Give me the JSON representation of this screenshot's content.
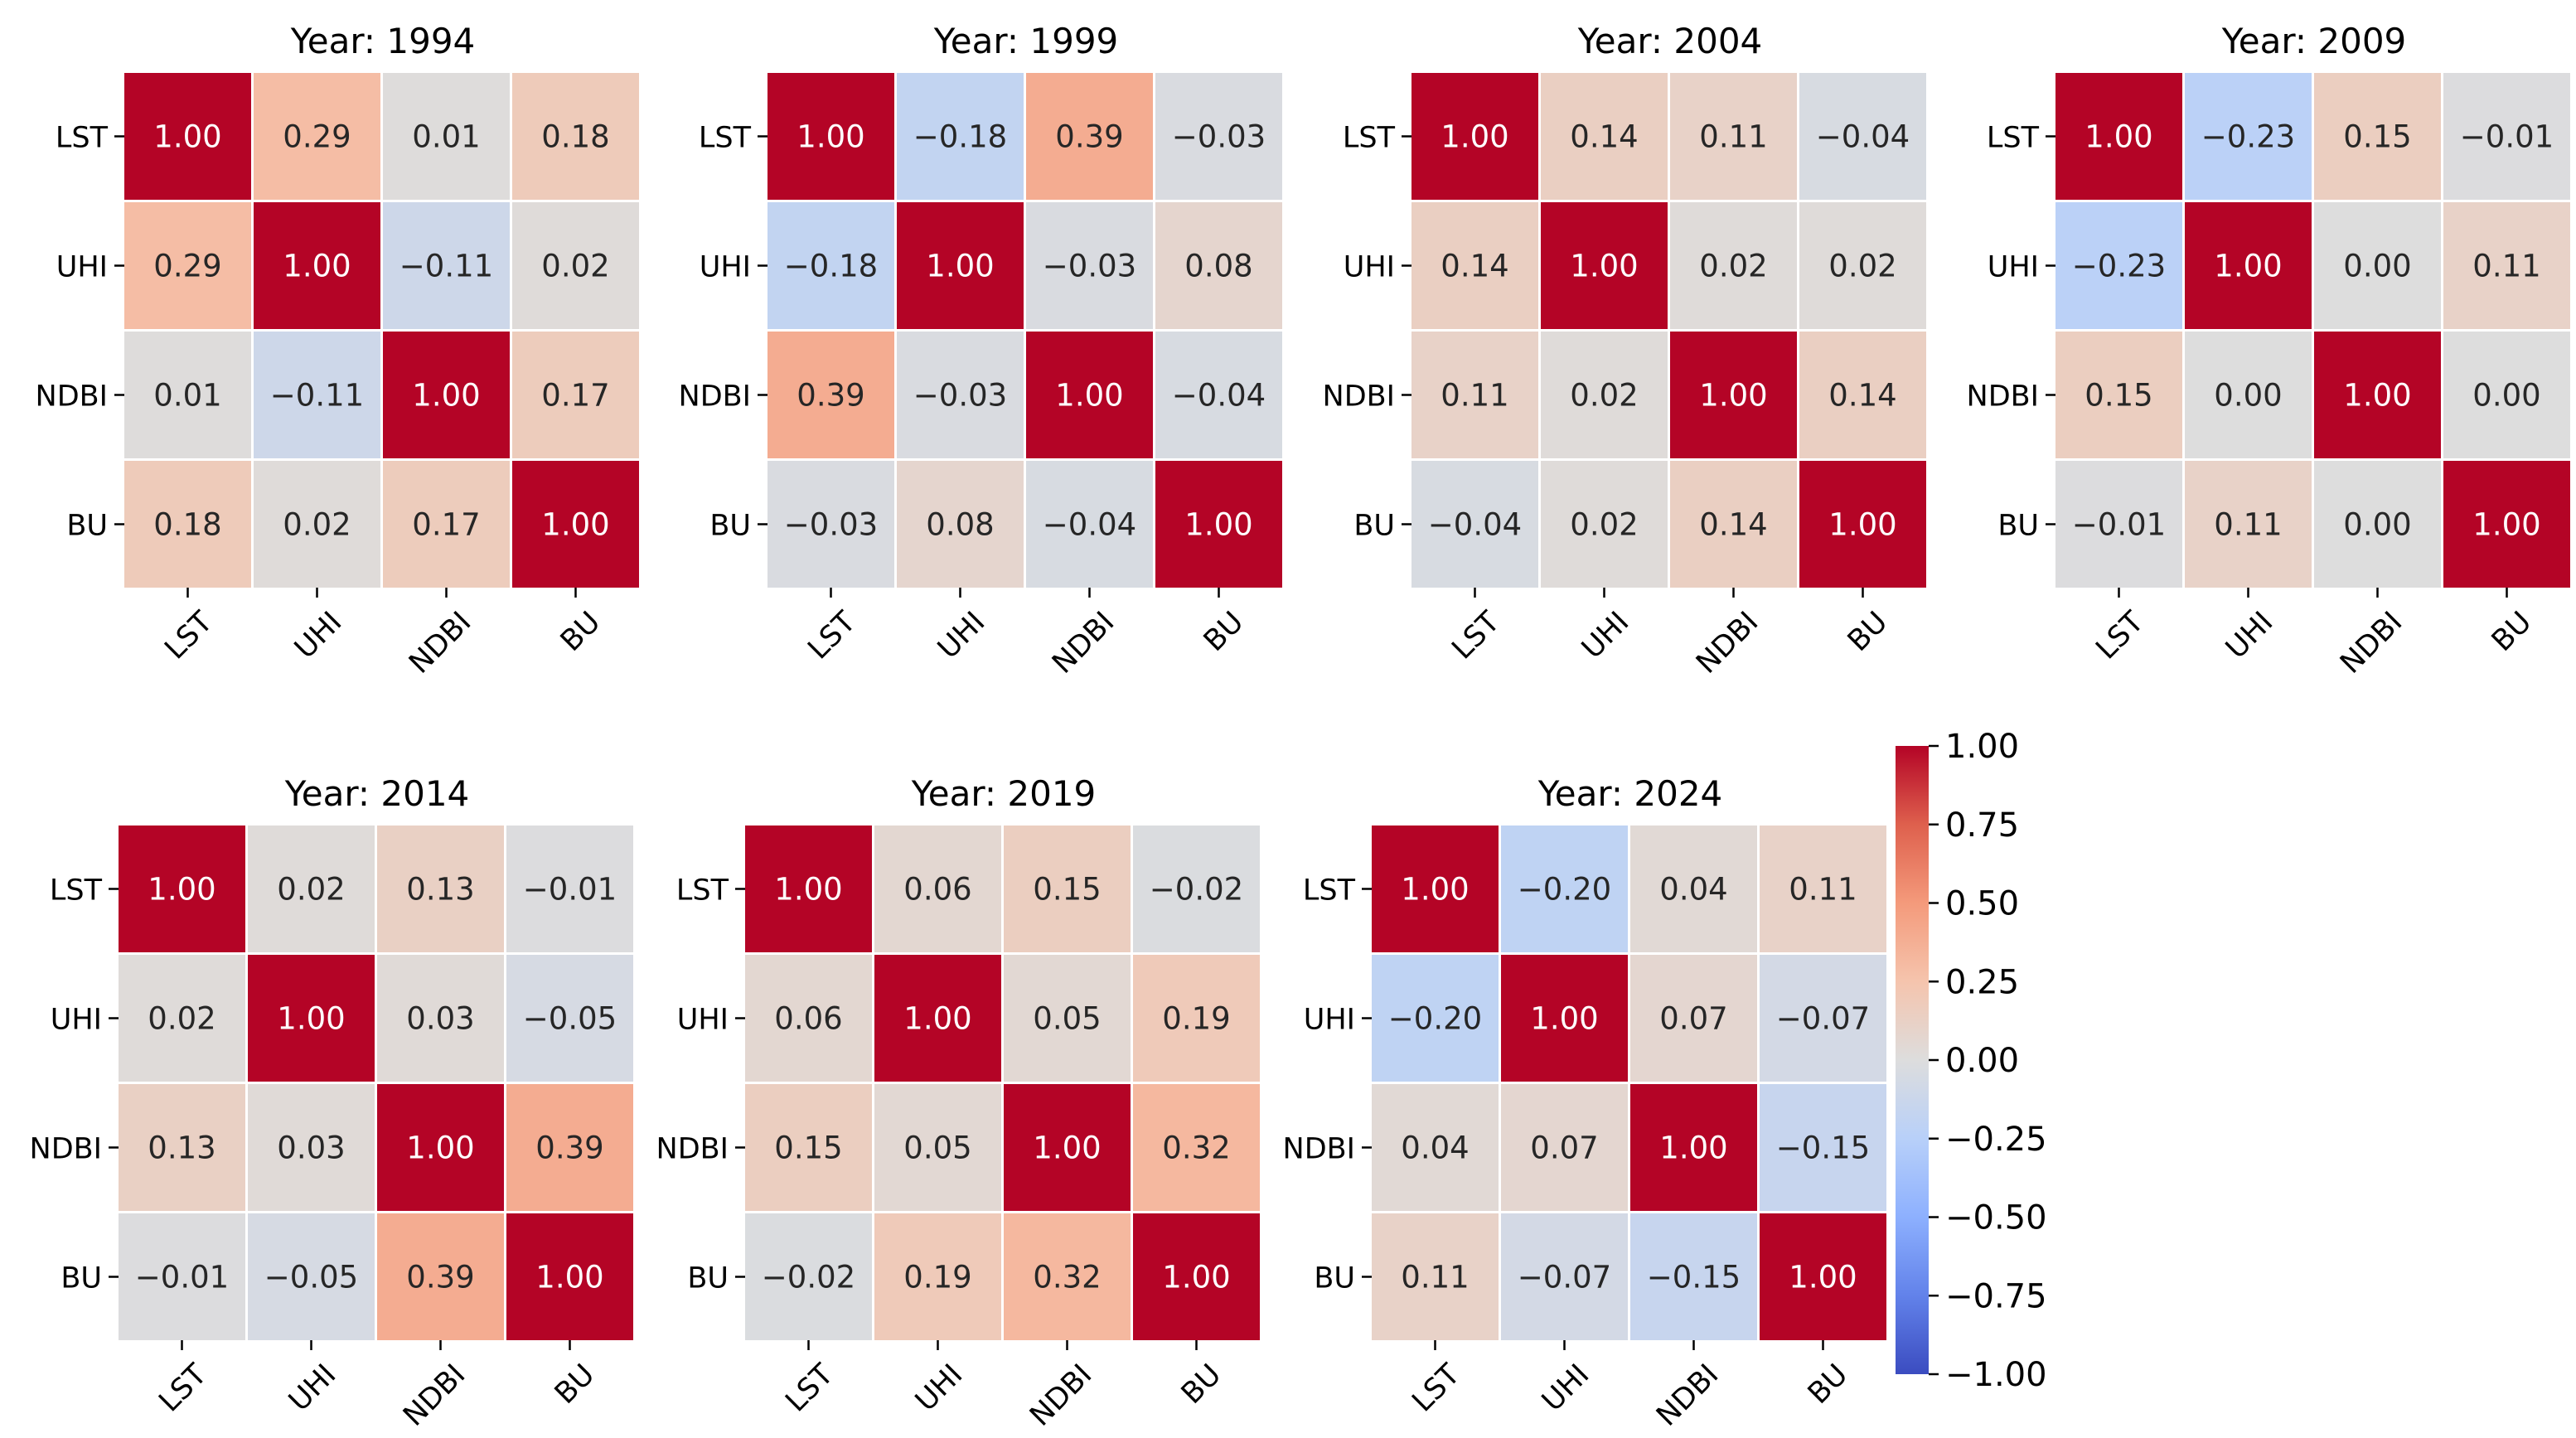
{
  "chart_data": {
    "type": "heatmap",
    "variables": [
      "LST",
      "UHI",
      "NDBI",
      "BU"
    ],
    "colorbar": {
      "min": -1.0,
      "max": 1.0,
      "ticks": [
        "1.00",
        "0.75",
        "0.50",
        "0.25",
        "0.00",
        "−0.25",
        "−0.50",
        "−0.75",
        "−1.00"
      ],
      "colormap": "coolwarm"
    },
    "colors": {
      "low": "#3b4cc0",
      "mid": "#dddddd",
      "high": "#b40426",
      "text_dark": "#262626",
      "text_light": "#ffffff"
    },
    "panels": [
      {
        "title": "Year: 1994",
        "matrix": [
          [
            1.0,
            0.29,
            0.01,
            0.18
          ],
          [
            0.29,
            1.0,
            -0.11,
            0.02
          ],
          [
            0.01,
            -0.11,
            1.0,
            0.17
          ],
          [
            0.18,
            0.02,
            0.17,
            1.0
          ]
        ]
      },
      {
        "title": "Year: 1999",
        "matrix": [
          [
            1.0,
            -0.18,
            0.39,
            -0.03
          ],
          [
            -0.18,
            1.0,
            -0.03,
            0.08
          ],
          [
            0.39,
            -0.03,
            1.0,
            -0.04
          ],
          [
            -0.03,
            0.08,
            -0.04,
            1.0
          ]
        ]
      },
      {
        "title": "Year: 2004",
        "matrix": [
          [
            1.0,
            0.14,
            0.11,
            -0.04
          ],
          [
            0.14,
            1.0,
            0.02,
            0.02
          ],
          [
            0.11,
            0.02,
            1.0,
            0.14
          ],
          [
            -0.04,
            0.02,
            0.14,
            1.0
          ]
        ]
      },
      {
        "title": "Year: 2009",
        "matrix": [
          [
            1.0,
            -0.23,
            0.15,
            -0.01
          ],
          [
            -0.23,
            1.0,
            0.0,
            0.11
          ],
          [
            0.15,
            0.0,
            1.0,
            0.0
          ],
          [
            -0.01,
            0.11,
            0.0,
            1.0
          ]
        ]
      },
      {
        "title": "Year: 2014",
        "matrix": [
          [
            1.0,
            0.02,
            0.13,
            -0.01
          ],
          [
            0.02,
            1.0,
            0.03,
            -0.05
          ],
          [
            0.13,
            0.03,
            1.0,
            0.39
          ],
          [
            -0.01,
            -0.05,
            0.39,
            1.0
          ]
        ]
      },
      {
        "title": "Year: 2019",
        "matrix": [
          [
            1.0,
            0.06,
            0.15,
            -0.02
          ],
          [
            0.06,
            1.0,
            0.05,
            0.19
          ],
          [
            0.15,
            0.05,
            1.0,
            0.32
          ],
          [
            -0.02,
            0.19,
            0.32,
            1.0
          ]
        ]
      },
      {
        "title": "Year: 2024",
        "matrix": [
          [
            1.0,
            -0.2,
            0.04,
            0.11
          ],
          [
            -0.2,
            1.0,
            0.07,
            -0.07
          ],
          [
            0.04,
            0.07,
            1.0,
            -0.15
          ],
          [
            0.11,
            -0.07,
            -0.15,
            1.0
          ]
        ]
      }
    ]
  }
}
